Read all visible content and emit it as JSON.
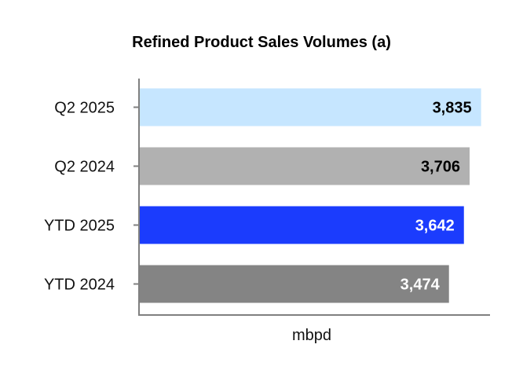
{
  "chart_data": {
    "type": "bar",
    "orientation": "horizontal",
    "title": "Refined Product Sales Volumes (a)",
    "xlabel": "mbpd",
    "ylabel": "",
    "categories": [
      "Q2 2025",
      "Q2 2024",
      "YTD 2025",
      "YTD 2024"
    ],
    "values": [
      3835,
      3706,
      3642,
      3474
    ],
    "value_labels": [
      "3,835",
      "3,706",
      "3,642",
      "3,474"
    ],
    "bar_colors": [
      "#c6e6ff",
      "#b1b1b1",
      "#1b3cfd",
      "#848484"
    ],
    "label_colors": [
      "#000000",
      "#000000",
      "#ffffff",
      "#ffffff"
    ],
    "xlim": [
      0,
      3900
    ],
    "grid": false,
    "legend": "none"
  }
}
